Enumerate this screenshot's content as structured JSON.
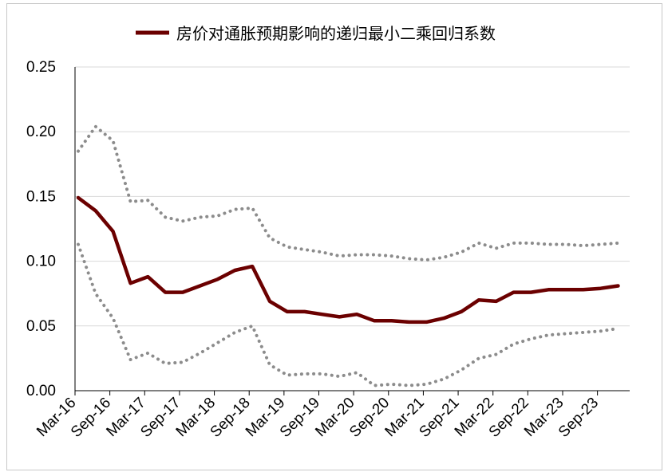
{
  "chart_data": {
    "type": "line",
    "legend": {
      "label": "房价对通胀预期影响的递归最小二乘回归系数",
      "position": "top"
    },
    "colors": {
      "estimate": "#6b0000",
      "band": "#8c8c8c",
      "grid": "#d9d9d9"
    },
    "ylim": [
      0,
      0.25
    ],
    "yticks": [
      "0.00",
      "0.05",
      "0.10",
      "0.15",
      "0.20",
      "0.25"
    ],
    "xticks": [
      "Mar-16",
      "Sep-16",
      "Mar-17",
      "Sep-17",
      "Mar-18",
      "Sep-18",
      "Mar-19",
      "Sep-19",
      "Mar-20",
      "Sep-20",
      "Mar-21",
      "Sep-21",
      "Mar-22",
      "Sep-22",
      "Mar-23",
      "Sep-23"
    ],
    "x": [
      "Mar-16",
      "Jun-16",
      "Sep-16",
      "Dec-16",
      "Mar-17",
      "Jun-17",
      "Sep-17",
      "Dec-17",
      "Mar-18",
      "Jun-18",
      "Sep-18",
      "Dec-18",
      "Mar-19",
      "Jun-19",
      "Sep-19",
      "Dec-19",
      "Mar-20",
      "Jun-20",
      "Sep-20",
      "Dec-20",
      "Mar-21",
      "Jun-21",
      "Sep-21",
      "Dec-21",
      "Mar-22",
      "Jun-22",
      "Sep-22",
      "Dec-22",
      "Mar-23",
      "Jun-23",
      "Sep-23",
      "Dec-23"
    ],
    "series": [
      {
        "key": "estimate",
        "style": "solid",
        "values": [
          0.149,
          0.139,
          0.123,
          0.083,
          0.088,
          0.076,
          0.076,
          0.081,
          0.086,
          0.093,
          0.096,
          0.069,
          0.061,
          0.061,
          0.059,
          0.057,
          0.059,
          0.054,
          0.054,
          0.053,
          0.053,
          0.056,
          0.061,
          0.07,
          0.069,
          0.076,
          0.076,
          0.078,
          0.078,
          0.078,
          0.079,
          0.081
        ]
      },
      {
        "key": "upper",
        "style": "dotted",
        "values": [
          0.185,
          0.204,
          0.193,
          0.146,
          0.147,
          0.134,
          0.131,
          0.134,
          0.135,
          0.14,
          0.141,
          0.118,
          0.111,
          0.109,
          0.107,
          0.104,
          0.105,
          0.105,
          0.104,
          0.102,
          0.101,
          0.103,
          0.107,
          0.114,
          0.11,
          0.114,
          0.114,
          0.113,
          0.113,
          0.112,
          0.113,
          0.114
        ]
      },
      {
        "key": "lower",
        "style": "dotted",
        "values": [
          0.113,
          0.075,
          0.056,
          0.024,
          0.029,
          0.021,
          0.022,
          0.029,
          0.037,
          0.045,
          0.05,
          0.02,
          0.012,
          0.013,
          0.013,
          0.011,
          0.014,
          0.004,
          0.005,
          0.004,
          0.005,
          0.009,
          0.016,
          0.025,
          0.028,
          0.036,
          0.04,
          0.043,
          0.044,
          0.045,
          0.046,
          0.048
        ]
      }
    ]
  }
}
